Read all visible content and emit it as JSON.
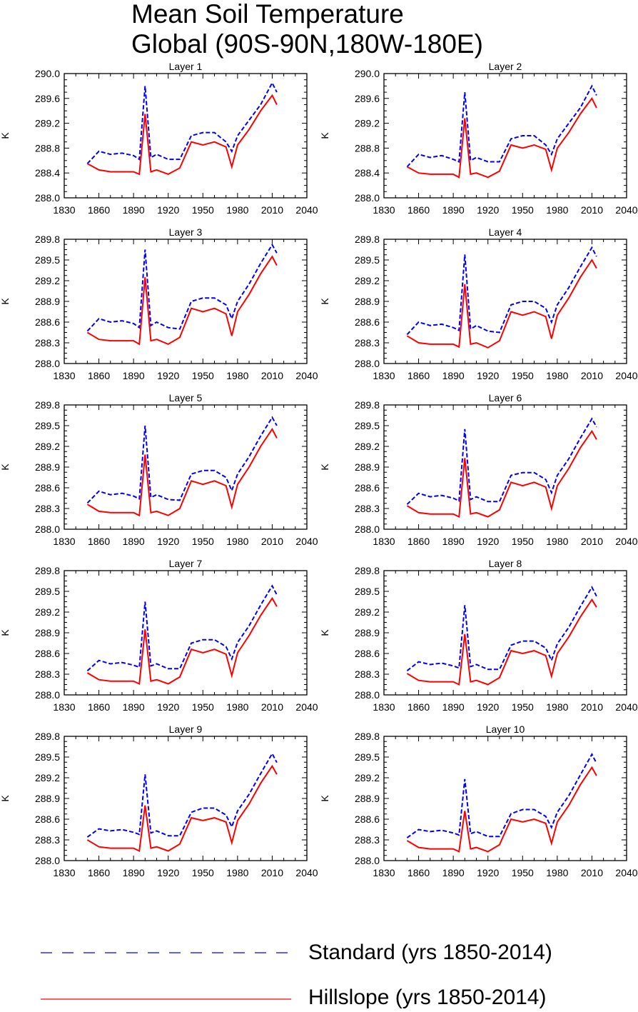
{
  "title": [
    "Mean Soil Temperature",
    "Global (90S-90N,180W-180E)"
  ],
  "legend": [
    {
      "label": "Standard (yrs 1850-2014)",
      "color": "#0000ff",
      "style": "dashed"
    },
    {
      "label": "Hillslope (yrs 1850-2014)",
      "color": "#ff0000",
      "style": "solid"
    }
  ],
  "chart_data": [
    {
      "type": "line",
      "title": "Layer 1",
      "ylabel": "K",
      "xlim": [
        1830,
        2040
      ],
      "ylim": [
        288.0,
        290.0
      ],
      "xticks": [
        1830,
        1860,
        1890,
        1920,
        1950,
        1980,
        2010,
        2040
      ],
      "yticks": [
        "288.0",
        "288.4",
        "288.8",
        "289.2",
        "289.6",
        "290.0"
      ],
      "x": [
        1850,
        1860,
        1870,
        1880,
        1890,
        1895,
        1900,
        1905,
        1910,
        1920,
        1930,
        1940,
        1950,
        1960,
        1970,
        1975,
        1980,
        1990,
        2000,
        2010,
        2014
      ],
      "series": [
        {
          "name": "Standard (yrs 1850-2014)",
          "values": [
            288.55,
            288.75,
            288.7,
            288.72,
            288.68,
            288.62,
            289.8,
            288.65,
            288.7,
            288.62,
            288.62,
            289.0,
            289.05,
            289.05,
            288.9,
            288.75,
            289.0,
            289.25,
            289.5,
            289.85,
            289.7
          ]
        },
        {
          "name": "Hillslope (yrs 1850-2014)",
          "values": [
            288.55,
            288.45,
            288.42,
            288.42,
            288.42,
            288.38,
            289.35,
            288.42,
            288.45,
            288.38,
            288.48,
            288.9,
            288.85,
            288.9,
            288.82,
            288.5,
            288.85,
            289.1,
            289.4,
            289.65,
            289.5
          ]
        }
      ]
    },
    {
      "type": "line",
      "title": "Layer 2",
      "ylabel": "K",
      "xlim": [
        1830,
        2040
      ],
      "ylim": [
        288.0,
        290.0
      ],
      "xticks": [
        1830,
        1860,
        1890,
        1920,
        1950,
        1980,
        2010,
        2040
      ],
      "yticks": [
        "288.0",
        "288.4",
        "288.8",
        "289.2",
        "289.6",
        "290.0"
      ],
      "x": [
        1850,
        1860,
        1870,
        1880,
        1890,
        1895,
        1900,
        1905,
        1910,
        1920,
        1930,
        1940,
        1950,
        1960,
        1970,
        1975,
        1980,
        1990,
        2000,
        2010,
        2014
      ],
      "series": [
        {
          "name": "Standard (yrs 1850-2014)",
          "values": [
            288.5,
            288.7,
            288.65,
            288.68,
            288.62,
            288.58,
            289.7,
            288.6,
            288.65,
            288.58,
            288.58,
            288.95,
            289.0,
            289.0,
            288.85,
            288.7,
            288.95,
            289.2,
            289.45,
            289.8,
            289.65
          ]
        },
        {
          "name": "Hillslope (yrs 1850-2014)",
          "values": [
            288.5,
            288.4,
            288.38,
            288.38,
            288.38,
            288.33,
            289.28,
            288.38,
            288.4,
            288.33,
            288.43,
            288.85,
            288.8,
            288.85,
            288.78,
            288.45,
            288.8,
            289.05,
            289.35,
            289.6,
            289.45
          ]
        }
      ]
    },
    {
      "type": "line",
      "title": "Layer 3",
      "ylabel": "K",
      "xlim": [
        1830,
        2040
      ],
      "ylim": [
        288.0,
        289.8
      ],
      "xticks": [
        1830,
        1860,
        1890,
        1920,
        1950,
        1980,
        2010,
        2040
      ],
      "yticks": [
        "288.0",
        "288.3",
        "288.6",
        "288.9",
        "289.2",
        "289.5",
        "289.8"
      ],
      "x": [
        1850,
        1860,
        1870,
        1880,
        1890,
        1895,
        1900,
        1905,
        1910,
        1920,
        1930,
        1940,
        1950,
        1960,
        1970,
        1975,
        1980,
        1990,
        2000,
        2010,
        2014
      ],
      "series": [
        {
          "name": "Standard (yrs 1850-2014)",
          "values": [
            288.47,
            288.65,
            288.6,
            288.62,
            288.58,
            288.52,
            289.65,
            288.55,
            288.6,
            288.52,
            288.5,
            288.9,
            288.95,
            288.95,
            288.85,
            288.65,
            288.9,
            289.15,
            289.45,
            289.72,
            289.6
          ]
        },
        {
          "name": "Hillslope (yrs 1850-2014)",
          "values": [
            288.45,
            288.35,
            288.33,
            288.33,
            288.33,
            288.28,
            289.25,
            288.33,
            288.35,
            288.28,
            288.38,
            288.8,
            288.75,
            288.8,
            288.72,
            288.4,
            288.75,
            289.0,
            289.3,
            289.55,
            289.42
          ]
        }
      ]
    },
    {
      "type": "line",
      "title": "Layer 4",
      "ylabel": "K",
      "xlim": [
        1830,
        2040
      ],
      "ylim": [
        288.0,
        289.8
      ],
      "xticks": [
        1830,
        1860,
        1890,
        1920,
        1950,
        1980,
        2010,
        2040
      ],
      "yticks": [
        "288.0",
        "288.3",
        "288.6",
        "288.9",
        "289.2",
        "289.5",
        "289.8"
      ],
      "x": [
        1850,
        1860,
        1870,
        1880,
        1890,
        1895,
        1900,
        1905,
        1910,
        1920,
        1930,
        1940,
        1950,
        1960,
        1970,
        1975,
        1980,
        1990,
        2000,
        2010,
        2014
      ],
      "series": [
        {
          "name": "Standard (yrs 1850-2014)",
          "values": [
            288.42,
            288.6,
            288.55,
            288.57,
            288.52,
            288.48,
            289.58,
            288.5,
            288.55,
            288.47,
            288.45,
            288.85,
            288.9,
            288.9,
            288.8,
            288.6,
            288.85,
            289.1,
            289.4,
            289.68,
            289.55
          ]
        },
        {
          "name": "Hillslope (yrs 1850-2014)",
          "values": [
            288.4,
            288.3,
            288.28,
            288.28,
            288.28,
            288.24,
            289.15,
            288.28,
            288.3,
            288.23,
            288.33,
            288.75,
            288.7,
            288.75,
            288.68,
            288.36,
            288.7,
            288.95,
            289.25,
            289.5,
            289.38
          ]
        }
      ]
    },
    {
      "type": "line",
      "title": "Layer 5",
      "ylabel": "K",
      "xlim": [
        1830,
        2040
      ],
      "ylim": [
        288.0,
        289.8
      ],
      "xticks": [
        1830,
        1860,
        1890,
        1920,
        1950,
        1980,
        2010,
        2040
      ],
      "yticks": [
        "288.0",
        "288.3",
        "288.6",
        "288.9",
        "289.2",
        "289.5",
        "289.8"
      ],
      "x": [
        1850,
        1860,
        1870,
        1880,
        1890,
        1895,
        1900,
        1905,
        1910,
        1920,
        1930,
        1940,
        1950,
        1960,
        1970,
        1975,
        1980,
        1990,
        2000,
        2010,
        2014
      ],
      "series": [
        {
          "name": "Standard (yrs 1850-2014)",
          "values": [
            288.38,
            288.55,
            288.5,
            288.52,
            288.48,
            288.44,
            289.5,
            288.46,
            288.5,
            288.43,
            288.42,
            288.8,
            288.85,
            288.85,
            288.75,
            288.56,
            288.8,
            289.05,
            289.35,
            289.62,
            289.5
          ]
        },
        {
          "name": "Hillslope (yrs 1850-2014)",
          "values": [
            288.36,
            288.26,
            288.24,
            288.24,
            288.24,
            288.2,
            289.08,
            288.24,
            288.26,
            288.2,
            288.3,
            288.7,
            288.65,
            288.7,
            288.63,
            288.32,
            288.65,
            288.9,
            289.2,
            289.45,
            289.32
          ]
        }
      ]
    },
    {
      "type": "line",
      "title": "Layer 6",
      "ylabel": "K",
      "xlim": [
        1830,
        2040
      ],
      "ylim": [
        288.0,
        289.8
      ],
      "xticks": [
        1830,
        1860,
        1890,
        1920,
        1950,
        1980,
        2010,
        2040
      ],
      "yticks": [
        "288.0",
        "288.3",
        "288.6",
        "288.9",
        "289.2",
        "289.5",
        "289.8"
      ],
      "x": [
        1850,
        1860,
        1870,
        1880,
        1890,
        1895,
        1900,
        1905,
        1910,
        1920,
        1930,
        1940,
        1950,
        1960,
        1970,
        1975,
        1980,
        1990,
        2000,
        2010,
        2014
      ],
      "series": [
        {
          "name": "Standard (yrs 1850-2014)",
          "values": [
            288.36,
            288.52,
            288.47,
            288.49,
            288.45,
            288.41,
            289.45,
            288.43,
            288.47,
            288.4,
            288.4,
            288.78,
            288.82,
            288.82,
            288.72,
            288.53,
            288.78,
            289.02,
            289.32,
            289.6,
            289.48
          ]
        },
        {
          "name": "Hillslope (yrs 1850-2014)",
          "values": [
            288.34,
            288.24,
            288.22,
            288.22,
            288.22,
            288.18,
            289.03,
            288.22,
            288.24,
            288.18,
            288.28,
            288.68,
            288.63,
            288.68,
            288.61,
            288.3,
            288.63,
            288.88,
            289.18,
            289.42,
            289.3
          ]
        }
      ]
    },
    {
      "type": "line",
      "title": "Layer 7",
      "ylabel": "K",
      "xlim": [
        1830,
        2040
      ],
      "ylim": [
        288.0,
        289.8
      ],
      "xticks": [
        1830,
        1860,
        1890,
        1920,
        1950,
        1980,
        2010,
        2040
      ],
      "yticks": [
        "288.0",
        "288.3",
        "288.6",
        "288.9",
        "289.2",
        "289.5",
        "289.8"
      ],
      "x": [
        1850,
        1860,
        1870,
        1880,
        1890,
        1895,
        1900,
        1905,
        1910,
        1920,
        1930,
        1940,
        1950,
        1960,
        1970,
        1975,
        1980,
        1990,
        2000,
        2010,
        2014
      ],
      "series": [
        {
          "name": "Standard (yrs 1850-2014)",
          "values": [
            288.35,
            288.5,
            288.45,
            288.47,
            288.43,
            288.4,
            289.35,
            288.42,
            288.45,
            288.38,
            288.38,
            288.75,
            288.8,
            288.8,
            288.7,
            288.52,
            288.76,
            289.0,
            289.3,
            289.58,
            289.45
          ]
        },
        {
          "name": "Hillslope (yrs 1850-2014)",
          "values": [
            288.32,
            288.22,
            288.2,
            288.2,
            288.2,
            288.16,
            288.95,
            288.2,
            288.22,
            288.16,
            288.26,
            288.66,
            288.61,
            288.66,
            288.59,
            288.28,
            288.61,
            288.86,
            289.15,
            289.4,
            289.28
          ]
        }
      ]
    },
    {
      "type": "line",
      "title": "Layer 8",
      "ylabel": "K",
      "xlim": [
        1830,
        2040
      ],
      "ylim": [
        288.0,
        289.8
      ],
      "xticks": [
        1830,
        1860,
        1890,
        1920,
        1950,
        1980,
        2010,
        2040
      ],
      "yticks": [
        "288.0",
        "288.3",
        "288.6",
        "288.9",
        "289.2",
        "289.5",
        "289.8"
      ],
      "x": [
        1850,
        1860,
        1870,
        1880,
        1890,
        1895,
        1900,
        1905,
        1910,
        1920,
        1930,
        1940,
        1950,
        1960,
        1970,
        1975,
        1980,
        1990,
        2000,
        2010,
        2014
      ],
      "series": [
        {
          "name": "Standard (yrs 1850-2014)",
          "values": [
            288.35,
            288.48,
            288.44,
            288.46,
            288.42,
            288.39,
            289.3,
            288.41,
            288.44,
            288.37,
            288.37,
            288.72,
            288.78,
            288.78,
            288.68,
            288.5,
            288.74,
            288.98,
            289.28,
            289.56,
            289.43
          ]
        },
        {
          "name": "Hillslope (yrs 1850-2014)",
          "values": [
            288.31,
            288.21,
            288.19,
            288.19,
            288.19,
            288.15,
            288.88,
            288.19,
            288.21,
            288.15,
            288.25,
            288.64,
            288.6,
            288.64,
            288.57,
            288.27,
            288.6,
            288.84,
            289.13,
            289.38,
            289.27
          ]
        }
      ]
    },
    {
      "type": "line",
      "title": "Layer 9",
      "ylabel": "K",
      "xlim": [
        1830,
        2040
      ],
      "ylim": [
        288.0,
        289.8
      ],
      "xticks": [
        1830,
        1860,
        1890,
        1920,
        1950,
        1980,
        2010,
        2040
      ],
      "yticks": [
        "288.0",
        "288.3",
        "288.6",
        "288.9",
        "289.2",
        "289.5",
        "289.8"
      ],
      "x": [
        1850,
        1860,
        1870,
        1880,
        1890,
        1895,
        1900,
        1905,
        1910,
        1920,
        1930,
        1940,
        1950,
        1960,
        1970,
        1975,
        1980,
        1990,
        2000,
        2010,
        2014
      ],
      "series": [
        {
          "name": "Standard (yrs 1850-2014)",
          "values": [
            288.34,
            288.46,
            288.43,
            288.45,
            288.41,
            288.38,
            289.25,
            288.4,
            288.43,
            288.36,
            288.36,
            288.7,
            288.76,
            288.76,
            288.66,
            288.49,
            288.72,
            288.96,
            289.26,
            289.55,
            289.42
          ]
        },
        {
          "name": "Hillslope (yrs 1850-2014)",
          "values": [
            288.3,
            288.2,
            288.18,
            288.18,
            288.18,
            288.14,
            288.8,
            288.18,
            288.2,
            288.14,
            288.24,
            288.62,
            288.58,
            288.62,
            288.56,
            288.26,
            288.58,
            288.82,
            289.12,
            289.37,
            289.25
          ]
        }
      ]
    },
    {
      "type": "line",
      "title": "Layer 10",
      "ylabel": "K",
      "xlim": [
        1830,
        2040
      ],
      "ylim": [
        288.0,
        289.8
      ],
      "xticks": [
        1830,
        1860,
        1890,
        1920,
        1950,
        1980,
        2010,
        2040
      ],
      "yticks": [
        "288.0",
        "288.3",
        "288.6",
        "288.9",
        "289.2",
        "289.5",
        "289.8"
      ],
      "x": [
        1850,
        1860,
        1870,
        1880,
        1890,
        1895,
        1900,
        1905,
        1910,
        1920,
        1930,
        1940,
        1950,
        1960,
        1970,
        1975,
        1980,
        1990,
        2000,
        2010,
        2014
      ],
      "series": [
        {
          "name": "Standard (yrs 1850-2014)",
          "values": [
            288.33,
            288.45,
            288.42,
            288.44,
            288.4,
            288.37,
            289.18,
            288.39,
            288.42,
            288.35,
            288.35,
            288.68,
            288.74,
            288.74,
            288.64,
            288.48,
            288.7,
            288.94,
            289.24,
            289.54,
            289.41
          ]
        },
        {
          "name": "Hillslope (yrs 1850-2014)",
          "values": [
            288.29,
            288.19,
            288.17,
            288.17,
            288.17,
            288.13,
            288.72,
            288.17,
            288.19,
            288.13,
            288.23,
            288.6,
            288.56,
            288.6,
            288.54,
            288.25,
            288.56,
            288.8,
            289.1,
            289.35,
            289.23
          ]
        }
      ]
    }
  ]
}
